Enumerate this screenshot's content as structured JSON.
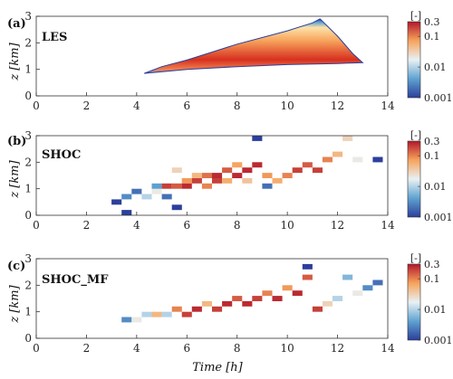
{
  "chart_data": [
    {
      "type": "heatmap",
      "panel_tag": "(a)",
      "label": "LES",
      "xlabel": "",
      "ylabel": "z [km]",
      "xlim": [
        0,
        14
      ],
      "ylim": [
        0,
        3
      ],
      "x_ticks": [
        "0",
        "2",
        "4",
        "6",
        "8",
        "10",
        "12",
        "14"
      ],
      "y_ticks": [
        "0",
        "1",
        "2",
        "3"
      ],
      "colorbar": {
        "title": "[-]",
        "ticks": [
          "0.3",
          "0.1",
          "0.01",
          "0.001"
        ],
        "scale": "log",
        "range": [
          0.001,
          0.3
        ]
      },
      "cloud_base_km": [
        [
          4.3,
          0.85
        ],
        [
          6,
          1.0
        ],
        [
          8,
          1.1
        ],
        [
          10,
          1.18
        ],
        [
          12,
          1.22
        ],
        [
          13,
          1.25
        ]
      ],
      "cloud_top_km": [
        [
          4.3,
          0.85
        ],
        [
          5,
          1.1
        ],
        [
          6,
          1.35
        ],
        [
          7,
          1.65
        ],
        [
          8,
          1.95
        ],
        [
          9,
          2.2
        ],
        [
          10,
          2.45
        ],
        [
          11,
          2.75
        ],
        [
          11.3,
          2.9
        ],
        [
          12,
          2.25
        ],
        [
          12.6,
          1.6
        ],
        [
          13,
          1.25
        ]
      ]
    },
    {
      "type": "heatmap",
      "panel_tag": "(b)",
      "label": "SHOC",
      "xlabel": "",
      "ylabel": "z [km]",
      "xlim": [
        0,
        14
      ],
      "ylim": [
        0,
        3
      ],
      "x_ticks": [
        "0",
        "2",
        "4",
        "6",
        "8",
        "10",
        "12",
        "14"
      ],
      "y_ticks": [
        "0",
        "1",
        "2",
        "3"
      ],
      "colorbar": {
        "title": "[-]",
        "ticks": [
          "0.3",
          "0.1",
          "0.01",
          "0.001"
        ],
        "scale": "log",
        "range": [
          0.001,
          0.3
        ]
      },
      "cells": [
        [
          3.2,
          0.5,
          0.001
        ],
        [
          3.6,
          0.7,
          0.003
        ],
        [
          3.6,
          0.1,
          0.001
        ],
        [
          4.0,
          0.9,
          0.002
        ],
        [
          4.4,
          0.7,
          0.01
        ],
        [
          4.8,
          0.9,
          0.02
        ],
        [
          4.8,
          1.1,
          0.004
        ],
        [
          5.2,
          1.1,
          0.2
        ],
        [
          5.2,
          0.7,
          0.002
        ],
        [
          5.6,
          1.1,
          0.15
        ],
        [
          5.6,
          1.7,
          0.03
        ],
        [
          5.6,
          0.3,
          0.001
        ],
        [
          6.0,
          1.3,
          0.08
        ],
        [
          6.0,
          1.1,
          0.25
        ],
        [
          6.4,
          1.3,
          0.2
        ],
        [
          6.4,
          1.5,
          0.05
        ],
        [
          6.8,
          1.5,
          0.12
        ],
        [
          6.8,
          1.1,
          0.1
        ],
        [
          7.2,
          1.3,
          0.2
        ],
        [
          7.2,
          1.5,
          0.25
        ],
        [
          7.6,
          1.7,
          0.15
        ],
        [
          7.6,
          1.3,
          0.06
        ],
        [
          8.0,
          1.5,
          0.25
        ],
        [
          8.0,
          1.9,
          0.07
        ],
        [
          8.4,
          1.7,
          0.25
        ],
        [
          8.4,
          1.3,
          0.04
        ],
        [
          8.8,
          1.9,
          0.25
        ],
        [
          8.8,
          2.9,
          0.001
        ],
        [
          9.2,
          1.5,
          0.08
        ],
        [
          9.2,
          1.1,
          0.002
        ],
        [
          9.6,
          1.3,
          0.06
        ],
        [
          10.0,
          1.5,
          0.1
        ],
        [
          10.4,
          1.7,
          0.2
        ],
        [
          10.8,
          1.9,
          0.15
        ],
        [
          11.2,
          1.7,
          0.2
        ],
        [
          11.6,
          2.1,
          0.1
        ],
        [
          12.0,
          2.3,
          0.05
        ],
        [
          12.4,
          2.9,
          0.03
        ],
        [
          12.8,
          2.1,
          0.02
        ],
        [
          13.6,
          2.1,
          0.001
        ]
      ]
    },
    {
      "type": "heatmap",
      "panel_tag": "(c)",
      "label": "SHOC_MF",
      "xlabel": "Time [h]",
      "ylabel": "z [km]",
      "xlim": [
        0,
        14
      ],
      "ylim": [
        0,
        3
      ],
      "x_ticks": [
        "0",
        "2",
        "4",
        "6",
        "8",
        "10",
        "12",
        "14"
      ],
      "y_ticks": [
        "0",
        "1",
        "2",
        "3"
      ],
      "colorbar": {
        "title": "[-]",
        "ticks": [
          "0.3",
          "0.1",
          "0.01",
          "0.001"
        ],
        "scale": "log",
        "range": [
          0.001,
          0.3
        ]
      },
      "cells": [
        [
          3.6,
          0.7,
          0.003
        ],
        [
          4.0,
          0.7,
          0.02
        ],
        [
          4.4,
          0.9,
          0.01
        ],
        [
          4.8,
          0.9,
          0.05
        ],
        [
          5.2,
          0.9,
          0.01
        ],
        [
          5.6,
          1.1,
          0.1
        ],
        [
          6.0,
          0.9,
          0.2
        ],
        [
          6.4,
          1.1,
          0.25
        ],
        [
          6.8,
          1.3,
          0.05
        ],
        [
          7.2,
          1.1,
          0.2
        ],
        [
          7.6,
          1.3,
          0.25
        ],
        [
          8.0,
          1.5,
          0.15
        ],
        [
          8.4,
          1.3,
          0.25
        ],
        [
          8.8,
          1.5,
          0.2
        ],
        [
          9.2,
          1.7,
          0.1
        ],
        [
          9.6,
          1.5,
          0.25
        ],
        [
          10.0,
          1.9,
          0.08
        ],
        [
          10.4,
          1.7,
          0.25
        ],
        [
          10.8,
          2.7,
          0.001
        ],
        [
          10.8,
          2.3,
          0.15
        ],
        [
          11.2,
          1.1,
          0.2
        ],
        [
          11.6,
          1.3,
          0.03
        ],
        [
          12.0,
          1.5,
          0.01
        ],
        [
          12.4,
          2.3,
          0.006
        ],
        [
          12.8,
          1.7,
          0.02
        ],
        [
          13.2,
          1.9,
          0.003
        ],
        [
          13.6,
          2.1,
          0.002
        ]
      ]
    }
  ]
}
